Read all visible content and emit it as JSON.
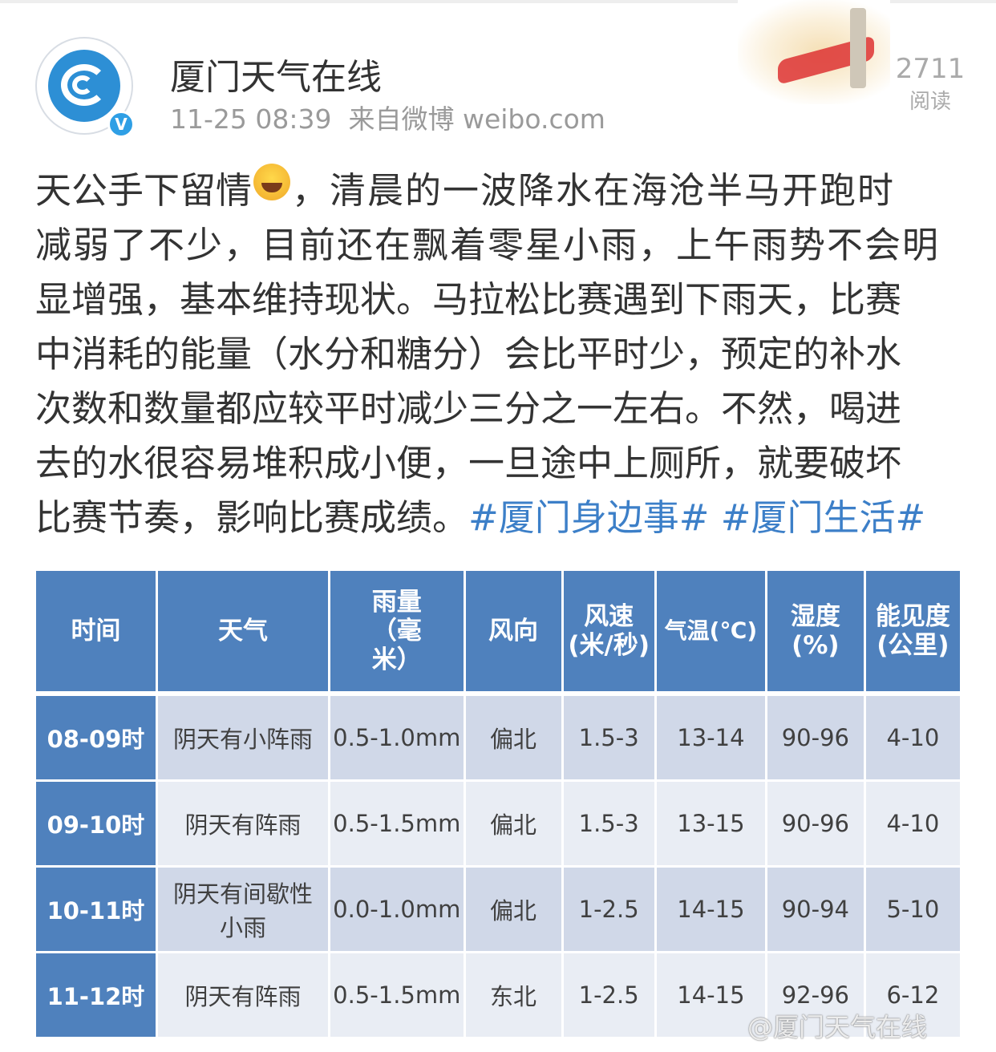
{
  "account": {
    "name": "厦门天气在线",
    "time": "11-25 08:39",
    "source": "来自微博 weibo.com",
    "verified_icon": "v-badge-icon"
  },
  "stats": {
    "reads": "2711",
    "reads_label": "阅读"
  },
  "post": {
    "line1_a": "天公手下留情",
    "line1_emoji": "laughing-tears-emoji",
    "line1_b": "，清晨的一波降水在海沧半马开跑时",
    "lines": [
      "减弱了不少，目前还在飘着零星小雨，上午雨势不会明",
      "显增强，基本维持现状。马拉松比赛遇到下雨天，比赛",
      "中消耗的能量（水分和糖分）会比平时少，预定的补水",
      "次数和数量都应较平时减少三分之一左右。不然，喝进",
      "去的水很容易堆积成小便，一旦途中上厕所，就要破坏"
    ],
    "last_line": "比赛节奏，影响比赛成绩。",
    "hashtags": [
      "#厦门身边事#",
      "#厦门生活#"
    ]
  },
  "table": {
    "headers": [
      "时间",
      "天气",
      "雨量（毫米）",
      "风向",
      "风速(米/秒)",
      "气温(℃)",
      "湿度(%)",
      "能见度(公里)"
    ],
    "rows": [
      [
        "08-09时",
        "阴天有小阵雨",
        "0.5-1.0mm",
        "偏北",
        "1.5-3",
        "13-14",
        "90-96",
        "4-10"
      ],
      [
        "09-10时",
        "阴天有阵雨",
        "0.5-1.5mm",
        "偏北",
        "1.5-3",
        "13-15",
        "90-96",
        "4-10"
      ],
      [
        "10-11时",
        "阴天有间歇性小雨",
        "0.0-1.0mm",
        "偏北",
        "1-2.5",
        "14-15",
        "90-94",
        "5-10"
      ],
      [
        "11-12时",
        "阴天有阵雨",
        "0.5-1.5mm",
        "东北",
        "1-2.5",
        "14-15",
        "92-96",
        "6-12"
      ]
    ]
  },
  "watermark": "@厦门天气在线",
  "colors": {
    "header_blue": "#4f81bd",
    "row_dark": "#d0d8e8",
    "row_light": "#e9edf4",
    "hashtag": "#3c7fc8"
  }
}
